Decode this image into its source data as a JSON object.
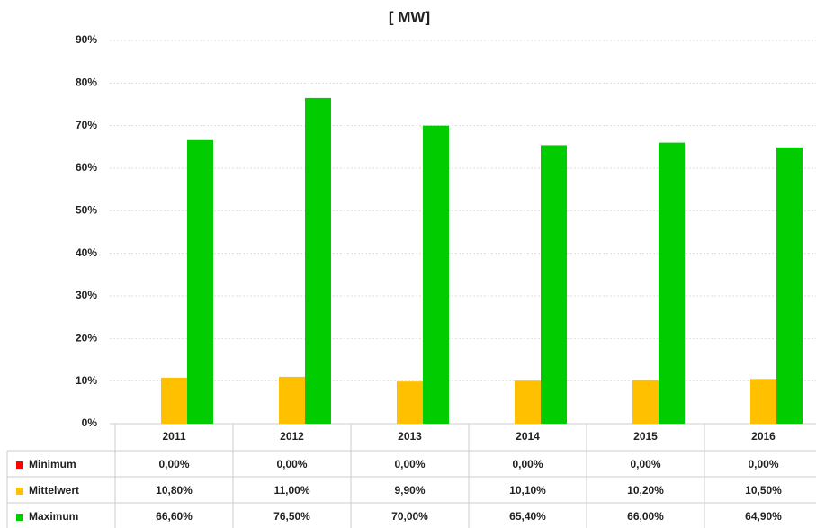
{
  "chart_data": {
    "type": "bar",
    "title": "[ MW]",
    "categories": [
      "2011",
      "2012",
      "2013",
      "2014",
      "2015",
      "2016"
    ],
    "series": [
      {
        "name": "Minimum",
        "color": "#ff0000",
        "values": [
          0,
          0,
          0,
          0,
          0,
          0
        ],
        "value_labels": [
          "0,00%",
          "0,00%",
          "0,00%",
          "0,00%",
          "0,00%",
          "0,00%"
        ]
      },
      {
        "name": "Mittelwert",
        "color": "#ffc000",
        "values": [
          10.8,
          11.0,
          9.9,
          10.1,
          10.2,
          10.5
        ],
        "value_labels": [
          "10,80%",
          "11,00%",
          "9,90%",
          "10,10%",
          "10,20%",
          "10,50%"
        ]
      },
      {
        "name": "Maximum",
        "color": "#00cc00",
        "values": [
          66.6,
          76.5,
          70.0,
          65.4,
          66.0,
          64.9
        ],
        "value_labels": [
          "66,60%",
          "76,50%",
          "70,00%",
          "65,40%",
          "66,00%",
          "64,90%"
        ]
      }
    ],
    "ylim": [
      0,
      90
    ],
    "yticks": [
      {
        "value": 0,
        "label": "0%"
      },
      {
        "value": 10,
        "label": "10%"
      },
      {
        "value": 20,
        "label": "20%"
      },
      {
        "value": 30,
        "label": "30%"
      },
      {
        "value": 40,
        "label": "40%"
      },
      {
        "value": 50,
        "label": "50%"
      },
      {
        "value": 60,
        "label": "60%"
      },
      {
        "value": 70,
        "label": "70%"
      },
      {
        "value": 80,
        "label": "80%"
      },
      {
        "value": 90,
        "label": "90%"
      }
    ],
    "grid": true
  }
}
